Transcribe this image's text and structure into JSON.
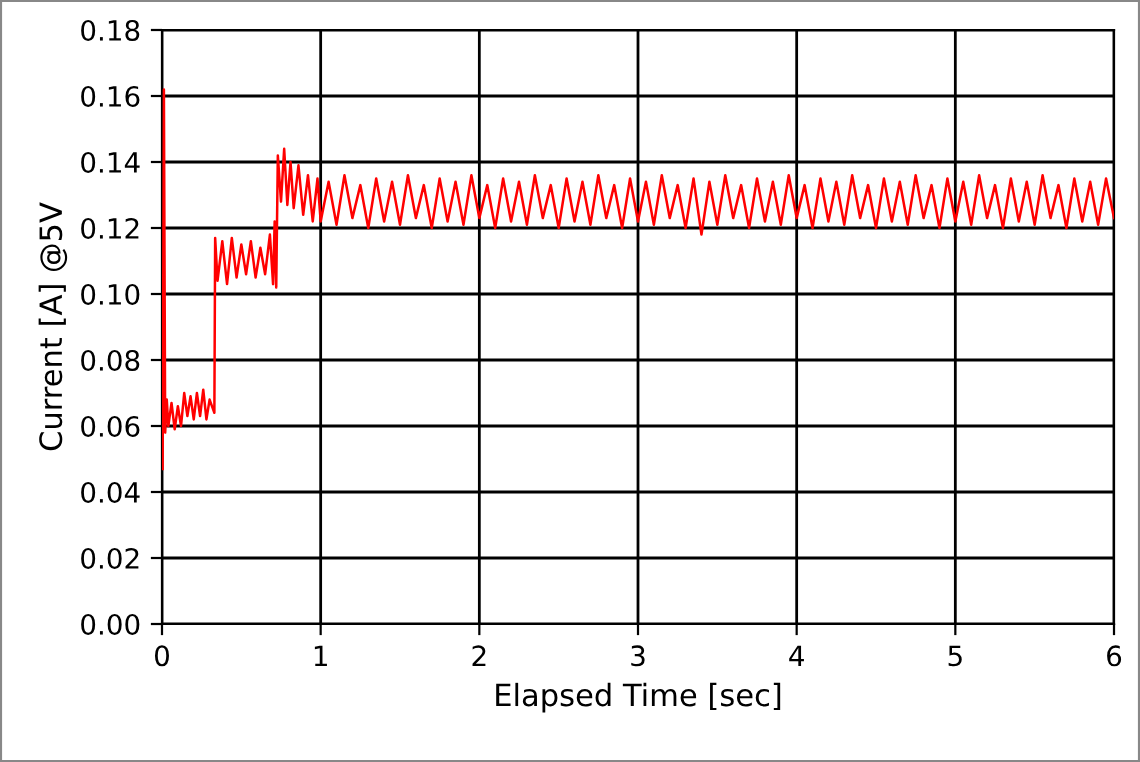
{
  "chart_data": {
    "type": "line",
    "xlabel": "Elapsed Time [sec]",
    "ylabel": "Current [A] @5V",
    "xlim": [
      0,
      6
    ],
    "xticks": [
      0,
      1,
      2,
      3,
      4,
      5,
      6
    ],
    "ylim": [
      0,
      0.18
    ],
    "yticks": [
      {
        "value": 0,
        "label": "0.00"
      },
      {
        "value": 0.02,
        "label": "0.02"
      },
      {
        "value": 0.04,
        "label": "0.04"
      },
      {
        "value": 0.06,
        "label": "0.06"
      },
      {
        "value": 0.08,
        "label": "0.08"
      },
      {
        "value": 0.1,
        "label": "0.10"
      },
      {
        "value": 0.12,
        "label": "0.12"
      },
      {
        "value": 0.14,
        "label": "0.14"
      },
      {
        "value": 0.16,
        "label": "0.16"
      },
      {
        "value": 0.18,
        "label": "0.18"
      }
    ],
    "grid": true,
    "legend": false,
    "marker": "none",
    "line_style": "solid",
    "series": [
      {
        "color": "#ff0000",
        "x": [
          0.004,
          0.012,
          0.02,
          0.03,
          0.04,
          0.06,
          0.08,
          0.1,
          0.12,
          0.14,
          0.16,
          0.18,
          0.2,
          0.22,
          0.24,
          0.26,
          0.28,
          0.3,
          0.33,
          0.335,
          0.35,
          0.38,
          0.41,
          0.44,
          0.47,
          0.5,
          0.53,
          0.56,
          0.59,
          0.62,
          0.65,
          0.68,
          0.7,
          0.71,
          0.72,
          0.73,
          0.75,
          0.77,
          0.79,
          0.81,
          0.83,
          0.86,
          0.89,
          0.92,
          0.95,
          0.98,
          1.0,
          1.05,
          1.1,
          1.15,
          1.2,
          1.25,
          1.3,
          1.35,
          1.4,
          1.45,
          1.5,
          1.55,
          1.6,
          1.65,
          1.7,
          1.75,
          1.8,
          1.85,
          1.9,
          1.95,
          2.0,
          2.05,
          2.1,
          2.15,
          2.2,
          2.25,
          2.3,
          2.35,
          2.4,
          2.45,
          2.5,
          2.55,
          2.6,
          2.65,
          2.7,
          2.75,
          2.8,
          2.85,
          2.9,
          2.95,
          3.0,
          3.05,
          3.1,
          3.15,
          3.2,
          3.25,
          3.3,
          3.35,
          3.4,
          3.45,
          3.5,
          3.55,
          3.6,
          3.65,
          3.7,
          3.75,
          3.8,
          3.85,
          3.9,
          3.95,
          4.0,
          4.05,
          4.1,
          4.15,
          4.2,
          4.25,
          4.3,
          4.35,
          4.4,
          4.45,
          4.5,
          4.55,
          4.6,
          4.65,
          4.7,
          4.75,
          4.8,
          4.85,
          4.9,
          4.95,
          5.0,
          5.05,
          5.1,
          5.15,
          5.2,
          5.25,
          5.3,
          5.35,
          5.4,
          5.45,
          5.5,
          5.55,
          5.6,
          5.65,
          5.7,
          5.75,
          5.8,
          5.85,
          5.9,
          5.95,
          6.0
        ],
        "values": [
          0.047,
          0.162,
          0.058,
          0.068,
          0.06,
          0.067,
          0.059,
          0.066,
          0.06,
          0.07,
          0.063,
          0.069,
          0.062,
          0.07,
          0.063,
          0.071,
          0.062,
          0.068,
          0.064,
          0.117,
          0.104,
          0.116,
          0.103,
          0.117,
          0.105,
          0.115,
          0.106,
          0.116,
          0.105,
          0.114,
          0.106,
          0.118,
          0.103,
          0.122,
          0.102,
          0.142,
          0.128,
          0.144,
          0.127,
          0.14,
          0.126,
          0.139,
          0.124,
          0.136,
          0.122,
          0.135,
          0.122,
          0.134,
          0.121,
          0.136,
          0.123,
          0.133,
          0.12,
          0.135,
          0.122,
          0.134,
          0.121,
          0.136,
          0.123,
          0.133,
          0.12,
          0.135,
          0.122,
          0.134,
          0.121,
          0.136,
          0.123,
          0.133,
          0.12,
          0.135,
          0.122,
          0.134,
          0.121,
          0.136,
          0.123,
          0.133,
          0.12,
          0.135,
          0.122,
          0.134,
          0.121,
          0.136,
          0.123,
          0.133,
          0.12,
          0.135,
          0.122,
          0.134,
          0.121,
          0.136,
          0.123,
          0.133,
          0.12,
          0.135,
          0.118,
          0.134,
          0.121,
          0.136,
          0.123,
          0.133,
          0.12,
          0.135,
          0.122,
          0.134,
          0.121,
          0.136,
          0.123,
          0.133,
          0.12,
          0.135,
          0.122,
          0.134,
          0.121,
          0.136,
          0.123,
          0.133,
          0.12,
          0.135,
          0.122,
          0.134,
          0.121,
          0.136,
          0.123,
          0.133,
          0.12,
          0.135,
          0.122,
          0.134,
          0.121,
          0.136,
          0.123,
          0.133,
          0.12,
          0.135,
          0.122,
          0.134,
          0.121,
          0.136,
          0.123,
          0.133,
          0.12,
          0.135,
          0.122,
          0.134,
          0.121,
          0.135,
          0.123
        ]
      }
    ]
  }
}
